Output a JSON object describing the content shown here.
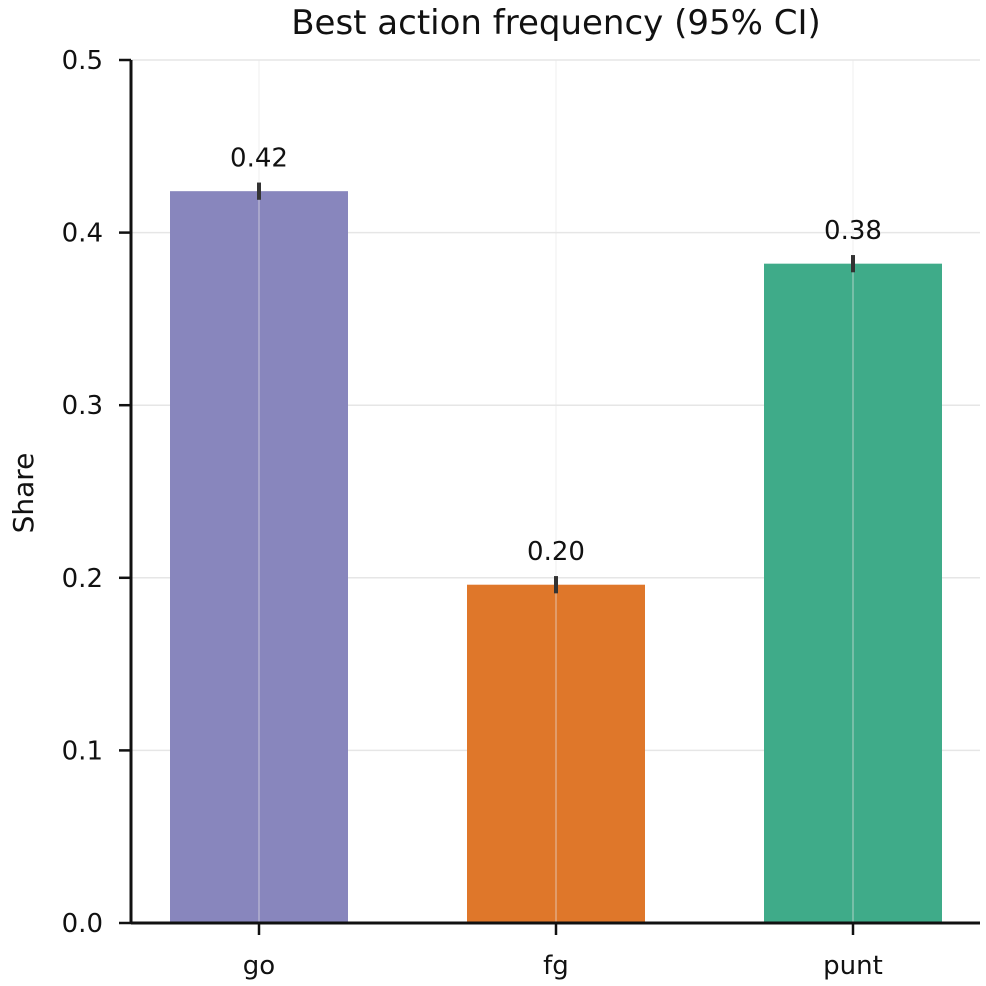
{
  "chart_data": {
    "type": "bar",
    "title": "Best action frequency (95% CI)",
    "xlabel": "",
    "ylabel": "Share",
    "categories": [
      "go",
      "fg",
      "punt"
    ],
    "values": [
      0.424,
      0.196,
      0.382
    ],
    "data_labels": [
      "0.42",
      "0.20",
      "0.38"
    ],
    "ci_low": [
      0.419,
      0.191,
      0.377
    ],
    "ci_high": [
      0.429,
      0.201,
      0.387
    ],
    "colors": [
      "#8886BD",
      "#DF772A",
      "#3FAB89"
    ],
    "ylim": [
      0,
      0.5
    ],
    "yticks": [
      0.0,
      0.1,
      0.2,
      0.3,
      0.4,
      0.5
    ],
    "ytick_labels": [
      "0.0",
      "0.1",
      "0.2",
      "0.3",
      "0.4",
      "0.5"
    ],
    "grid": true,
    "error_bar_color": "#333333",
    "grid_color": "#E6E6E6",
    "axis_color": "#111111"
  }
}
